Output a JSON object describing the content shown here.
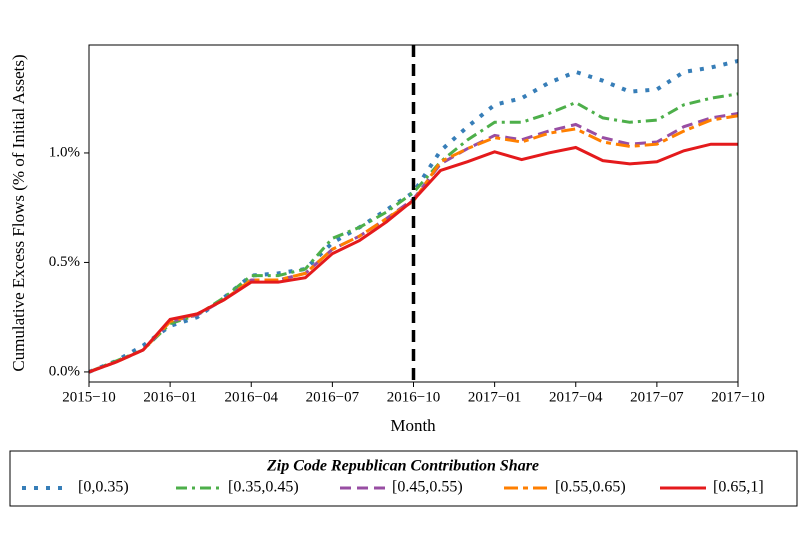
{
  "chart_data": {
    "type": "line",
    "y_label": "Cumulative Excess Flows (% of Initial Assets)",
    "x_label": "Month",
    "legend_title": "Zip Code Republican Contribution Share",
    "legend_position": "bottom",
    "x": [
      "2015-10",
      "2015-11",
      "2015-12",
      "2016-01",
      "2016-02",
      "2016-03",
      "2016-04",
      "2016-05",
      "2016-06",
      "2016-07",
      "2016-08",
      "2016-09",
      "2016-10",
      "2016-11",
      "2016-12",
      "2017-01",
      "2017-02",
      "2017-03",
      "2017-04",
      "2017-05",
      "2017-06",
      "2017-07",
      "2017-08",
      "2017-09",
      "2017-10"
    ],
    "xlim": [
      "2015-10",
      "2017-10"
    ],
    "xticks": [
      {
        "value": "2015-10",
        "label": "2015−10"
      },
      {
        "value": "2016-01",
        "label": "2016−01"
      },
      {
        "value": "2016-04",
        "label": "2016−04"
      },
      {
        "value": "2016-07",
        "label": "2016−07"
      },
      {
        "value": "2016-10",
        "label": "2016−10"
      },
      {
        "value": "2017-01",
        "label": "2017−01"
      },
      {
        "value": "2017-04",
        "label": "2017−04"
      },
      {
        "value": "2017-07",
        "label": "2017−07"
      },
      {
        "value": "2017-10",
        "label": "2017−10"
      }
    ],
    "ylim": [
      -0.046,
      1.493
    ],
    "yticks": [
      {
        "value": 0,
        "label": "0.0%"
      },
      {
        "value": 0.5,
        "label": "0.5%"
      },
      {
        "value": 1.0,
        "label": "1.0%"
      }
    ],
    "vline": {
      "x": "2016-10",
      "color": "#000000",
      "linestyle": "dashed"
    },
    "series": [
      {
        "name": "[0,0.35)",
        "color": "#377eb8",
        "linestyle": "dotted",
        "values": [
          0,
          0.05,
          0.12,
          0.21,
          0.25,
          0.34,
          0.44,
          0.45,
          0.47,
          0.59,
          0.66,
          0.74,
          0.82,
          1.01,
          1.12,
          1.22,
          1.25,
          1.32,
          1.37,
          1.33,
          1.28,
          1.29,
          1.37,
          1.39,
          1.42
        ]
      },
      {
        "name": "[0.35,0.45)",
        "color": "#4daf4a",
        "linestyle": "dashdot",
        "values": [
          0,
          0.05,
          0.1,
          0.22,
          0.26,
          0.34,
          0.44,
          0.44,
          0.47,
          0.61,
          0.66,
          0.73,
          0.82,
          0.96,
          1.06,
          1.14,
          1.14,
          1.18,
          1.23,
          1.16,
          1.14,
          1.15,
          1.22,
          1.25,
          1.27
        ]
      },
      {
        "name": "[0.45,0.55)",
        "color": "#984ea3",
        "linestyle": "dashed",
        "values": [
          0,
          0.045,
          0.1,
          0.23,
          0.26,
          0.33,
          0.42,
          0.42,
          0.45,
          0.56,
          0.62,
          0.7,
          0.79,
          0.95,
          1.02,
          1.08,
          1.06,
          1.1,
          1.13,
          1.07,
          1.04,
          1.05,
          1.12,
          1.16,
          1.18
        ]
      },
      {
        "name": "[0.55,0.65)",
        "color": "#ff7f00",
        "linestyle": "longdashshort",
        "values": [
          0,
          0.045,
          0.1,
          0.23,
          0.265,
          0.33,
          0.42,
          0.42,
          0.45,
          0.56,
          0.62,
          0.7,
          0.78,
          0.96,
          1.02,
          1.07,
          1.05,
          1.09,
          1.11,
          1.05,
          1.03,
          1.04,
          1.1,
          1.15,
          1.17
        ]
      },
      {
        "name": "[0.65,1]",
        "color": "#e41a1c",
        "linestyle": "solid",
        "values": [
          0,
          0.045,
          0.1,
          0.24,
          0.265,
          0.33,
          0.41,
          0.41,
          0.43,
          0.54,
          0.6,
          0.685,
          0.785,
          0.92,
          0.96,
          1.005,
          0.97,
          1.0,
          1.025,
          0.965,
          0.95,
          0.96,
          1.01,
          1.04,
          1.04
        ]
      }
    ]
  }
}
